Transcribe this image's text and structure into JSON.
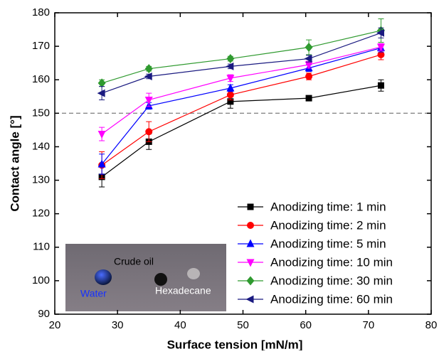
{
  "chart_data": {
    "type": "line",
    "x_label": "Surface tension [mN/m]",
    "y_label": "Contact angle [°]",
    "x": [
      27.5,
      35,
      48,
      60.5,
      72
    ],
    "series": [
      {
        "name": "Anodizing time: 1 min",
        "color": "#000000",
        "marker": "square",
        "values": [
          131,
          141.5,
          153.5,
          154.5,
          158.3
        ],
        "errors": [
          3,
          2.3,
          2,
          0.8,
          1.7
        ]
      },
      {
        "name": "Anodizing time: 2 min",
        "color": "#ff0000",
        "marker": "circle",
        "values": [
          134.5,
          144.5,
          155.5,
          161,
          167.5
        ],
        "errors": [
          4,
          3,
          1.5,
          1,
          1.5
        ]
      },
      {
        "name": "Anodizing time: 5 min",
        "color": "#0000ff",
        "marker": "triangle-up",
        "values": [
          134.8,
          152.2,
          157.5,
          163.5,
          169.5
        ],
        "errors": [
          3,
          1,
          1,
          1,
          1.2
        ]
      },
      {
        "name": "Anodizing time: 10 min",
        "color": "#ff00ff",
        "marker": "triangle-down",
        "values": [
          143.8,
          154,
          160.5,
          164.5,
          169.8
        ],
        "errors": [
          2,
          2,
          1,
          1,
          1
        ]
      },
      {
        "name": "Anodizing time: 30 min",
        "color": "#2f9a2f",
        "marker": "diamond",
        "values": [
          159,
          163.3,
          166.3,
          169.7,
          174.7
        ],
        "errors": [
          1,
          0.7,
          0.7,
          2.2,
          3.5
        ]
      },
      {
        "name": "Anodizing time: 60 min",
        "color": "#1a1a80",
        "marker": "triangle-left",
        "values": [
          156,
          161,
          164,
          166.3,
          174
        ],
        "errors": [
          2,
          0.7,
          0.7,
          1,
          1.5
        ]
      }
    ],
    "xlim": [
      20,
      80
    ],
    "xticks": [
      20,
      30,
      40,
      50,
      60,
      70,
      80
    ],
    "ylim": [
      90,
      180
    ],
    "yticks": [
      90,
      100,
      110,
      120,
      130,
      140,
      150,
      160,
      170,
      180
    ],
    "hline": 150,
    "legend": "lower right",
    "annotations": [
      "Crude oil",
      "Water",
      "Hexadecane"
    ]
  }
}
